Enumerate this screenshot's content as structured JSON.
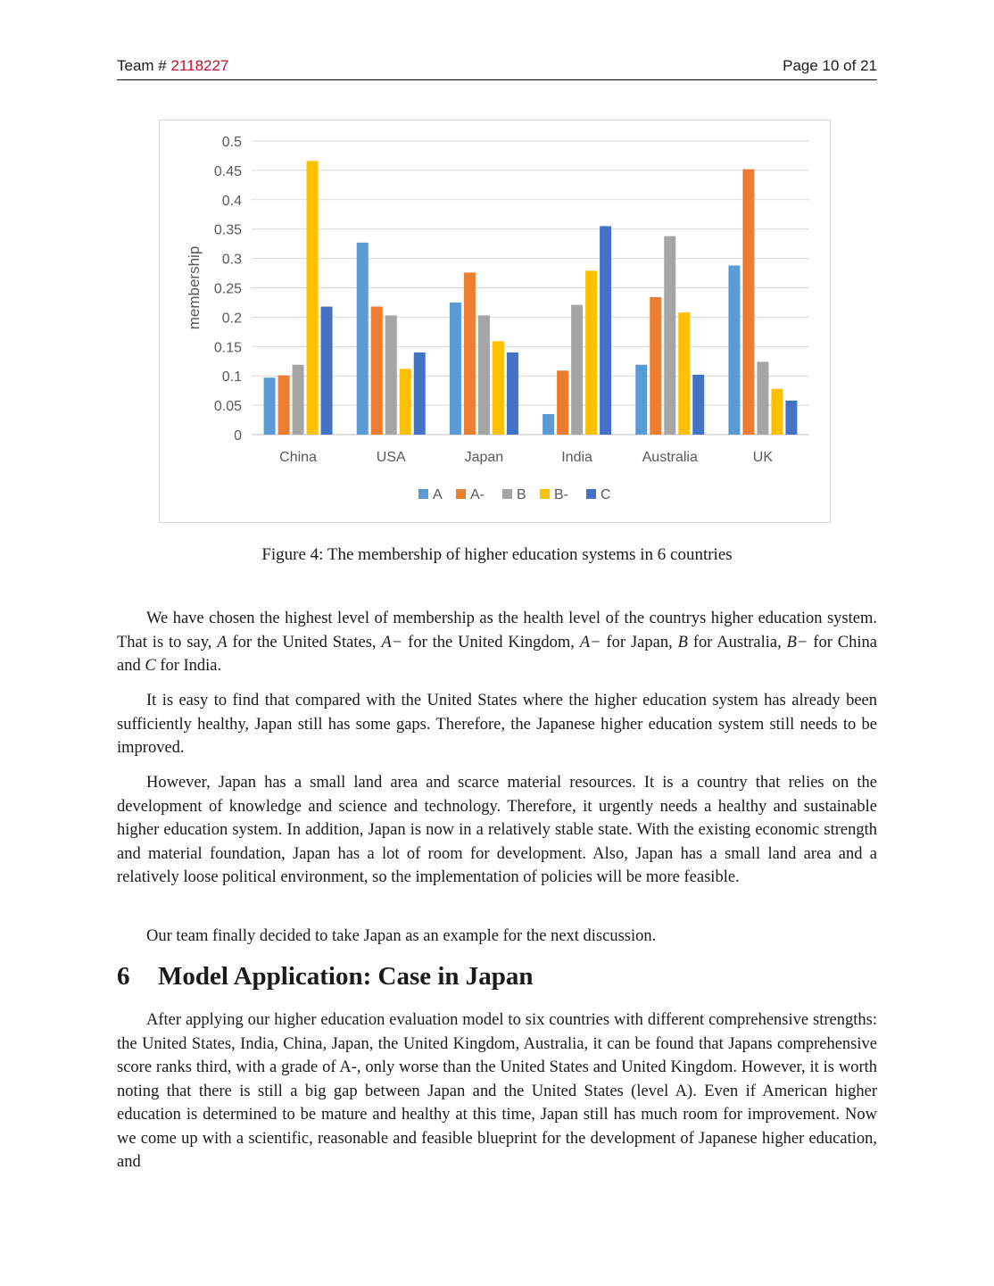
{
  "header": {
    "team_prefix": "Team # ",
    "team_number": "2118227",
    "page": "Page 10 of 21"
  },
  "figure": {
    "caption": "Figure 4: The membership of higher education systems in 6 countries"
  },
  "chart_data": {
    "type": "bar",
    "title": "",
    "xlabel": "",
    "ylabel": "membership",
    "ylim": [
      0,
      0.5
    ],
    "yticks": [
      "0",
      "0.05",
      "0.1",
      "0.15",
      "0.2",
      "0.25",
      "0.3",
      "0.35",
      "0.4",
      "0.45",
      "0.5"
    ],
    "categories": [
      "China",
      "USA",
      "Japan",
      "India",
      "Australia",
      "UK"
    ],
    "series": [
      {
        "name": "A",
        "color": "#5B9BD5",
        "values": [
          0.097,
          0.327,
          0.225,
          0.035,
          0.119,
          0.288
        ]
      },
      {
        "name": "A-",
        "color": "#ED7D31",
        "values": [
          0.101,
          0.218,
          0.276,
          0.109,
          0.234,
          0.452
        ]
      },
      {
        "name": "B",
        "color": "#A5A5A5",
        "values": [
          0.119,
          0.203,
          0.203,
          0.221,
          0.338,
          0.124
        ]
      },
      {
        "name": "B-",
        "color": "#FFC000",
        "values": [
          0.466,
          0.112,
          0.159,
          0.279,
          0.208,
          0.078
        ]
      },
      {
        "name": "C",
        "color": "#4472C4",
        "values": [
          0.218,
          0.14,
          0.14,
          0.355,
          0.102,
          0.058
        ]
      }
    ],
    "grid": true,
    "legend": "bottom"
  },
  "body": {
    "p1": {
      "s1": "We have chosen the highest level of membership as the health level of the countrys higher education system. That is to say, ",
      "m1": "A",
      "s2": " for the United States, ",
      "m2": "A−",
      "s3": " for the United Kingdom, ",
      "m3": "A−",
      "s4": " for Japan, ",
      "m4": "B",
      "s5": " for Australia, ",
      "m5": "B−",
      "s6": " for China and ",
      "m6": "C",
      "s7": " for India."
    },
    "p2": "It is easy to find that compared with the United States where the higher education system has already been sufficiently healthy, Japan still has some gaps. Therefore, the Japanese higher education system still needs to be improved.",
    "p3": "However, Japan has a small land area and scarce material resources. It is a country that relies on the development of knowledge and science and technology. Therefore, it urgently needs a healthy and sustainable higher education system. In addition, Japan is now in a relatively stable state. With the existing economic strength and material foundation, Japan has a lot of room for development. Also, Japan has a small land area and a relatively loose political environment, so the implementation of policies will be more feasible.",
    "p4": "Our team finally decided to take Japan as an example for the next discussion.",
    "section": {
      "number": "6",
      "title": "Model Application: Case in Japan"
    },
    "p5": "After applying our higher education evaluation model to six countries with different comprehensive strengths: the United States, India, China, Japan, the United Kingdom, Australia, it can be found that Japans comprehensive score ranks third, with a grade of A-, only worse than the United States and United Kingdom. However, it is worth noting that there is still a big gap between Japan and the United States (level A). Even if American higher education is determined to be mature and healthy at this time, Japan still has much room for improvement. Now we come up with a scientific, reasonable and feasible blueprint for the development of Japanese higher education, and"
  }
}
